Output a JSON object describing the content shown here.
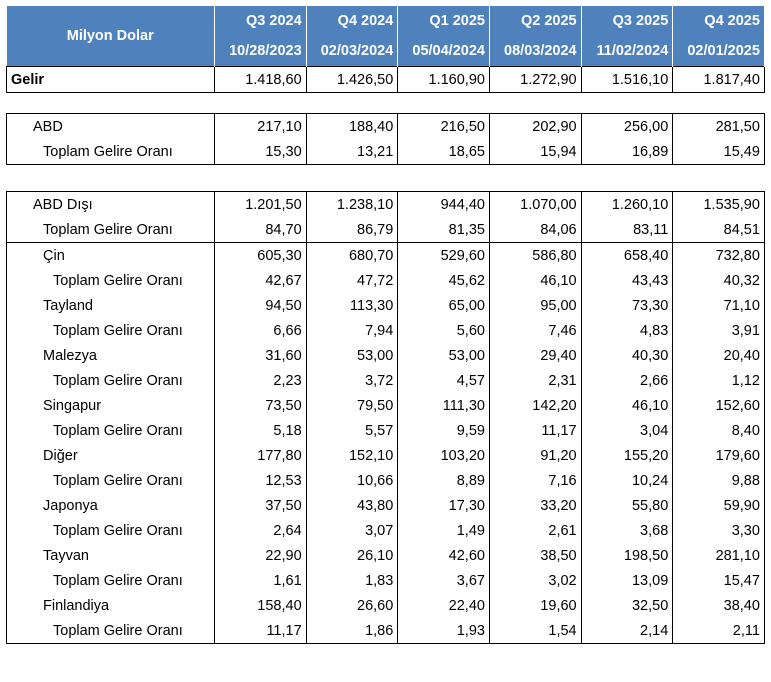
{
  "header": {
    "title": "Milyon Dolar",
    "quarters": [
      "Q3 2024",
      "Q4 2024",
      "Q1 2025",
      "Q2 2025",
      "Q3 2025",
      "Q4 2025"
    ],
    "dates": [
      "10/28/2023",
      "02/03/2024",
      "05/04/2024",
      "08/03/2024",
      "11/02/2024",
      "02/01/2025"
    ]
  },
  "gelir": {
    "label": "Gelir",
    "values": [
      "1.418,60",
      "1.426,50",
      "1.160,90",
      "1.272,90",
      "1.516,10",
      "1.817,40"
    ]
  },
  "abd": {
    "label": "ABD",
    "values": [
      "217,10",
      "188,40",
      "216,50",
      "202,90",
      "256,00",
      "281,50"
    ],
    "ratio_label": "Toplam Gelire Oranı",
    "ratio_values": [
      "15,30",
      "13,21",
      "18,65",
      "15,94",
      "16,89",
      "15,49"
    ]
  },
  "abd_disi": {
    "label": "ABD Dışı",
    "values": [
      "1.201,50",
      "1.238,10",
      "944,40",
      "1.070,00",
      "1.260,10",
      "1.535,90"
    ],
    "ratio_label": "Toplam Gelire Oranı",
    "ratio_values": [
      "84,70",
      "86,79",
      "81,35",
      "84,06",
      "83,11",
      "84,51"
    ]
  },
  "countries": [
    {
      "label": "Çin",
      "values": [
        "605,30",
        "680,70",
        "529,60",
        "586,80",
        "658,40",
        "732,80"
      ],
      "ratio_label": "Toplam Gelire Oranı",
      "ratio_values": [
        "42,67",
        "47,72",
        "45,62",
        "46,10",
        "43,43",
        "40,32"
      ]
    },
    {
      "label": "Tayland",
      "values": [
        "94,50",
        "113,30",
        "65,00",
        "95,00",
        "73,30",
        "71,10"
      ],
      "ratio_label": "Toplam Gelire Oranı",
      "ratio_values": [
        "6,66",
        "7,94",
        "5,60",
        "7,46",
        "4,83",
        "3,91"
      ]
    },
    {
      "label": "Malezya",
      "values": [
        "31,60",
        "53,00",
        "53,00",
        "29,40",
        "40,30",
        "20,40"
      ],
      "ratio_label": "Toplam Gelire Oranı",
      "ratio_values": [
        "2,23",
        "3,72",
        "4,57",
        "2,31",
        "2,66",
        "1,12"
      ]
    },
    {
      "label": "Singapur",
      "values": [
        "73,50",
        "79,50",
        "111,30",
        "142,20",
        "46,10",
        "152,60"
      ],
      "ratio_label": "Toplam Gelire Oranı",
      "ratio_values": [
        "5,18",
        "5,57",
        "9,59",
        "11,17",
        "3,04",
        "8,40"
      ]
    },
    {
      "label": "Diğer",
      "values": [
        "177,80",
        "152,10",
        "103,20",
        "91,20",
        "155,20",
        "179,60"
      ],
      "ratio_label": "Toplam Gelire Oranı",
      "ratio_values": [
        "12,53",
        "10,66",
        "8,89",
        "7,16",
        "10,24",
        "9,88"
      ]
    },
    {
      "label": "Japonya",
      "values": [
        "37,50",
        "43,80",
        "17,30",
        "33,20",
        "55,80",
        "59,90"
      ],
      "ratio_label": "Toplam Gelire Oranı",
      "ratio_values": [
        "2,64",
        "3,07",
        "1,49",
        "2,61",
        "3,68",
        "3,30"
      ]
    },
    {
      "label": "Tayvan",
      "values": [
        "22,90",
        "26,10",
        "42,60",
        "38,50",
        "198,50",
        "281,10"
      ],
      "ratio_label": "Toplam Gelire Oranı",
      "ratio_values": [
        "1,61",
        "1,83",
        "3,67",
        "3,02",
        "13,09",
        "15,47"
      ]
    },
    {
      "label": "Finlandiya",
      "values": [
        "158,40",
        "26,60",
        "22,40",
        "19,60",
        "32,50",
        "38,40"
      ],
      "ratio_label": "Toplam Gelire Oranı",
      "ratio_values": [
        "11,17",
        "1,86",
        "1,93",
        "1,54",
        "2,14",
        "2,11"
      ]
    }
  ]
}
